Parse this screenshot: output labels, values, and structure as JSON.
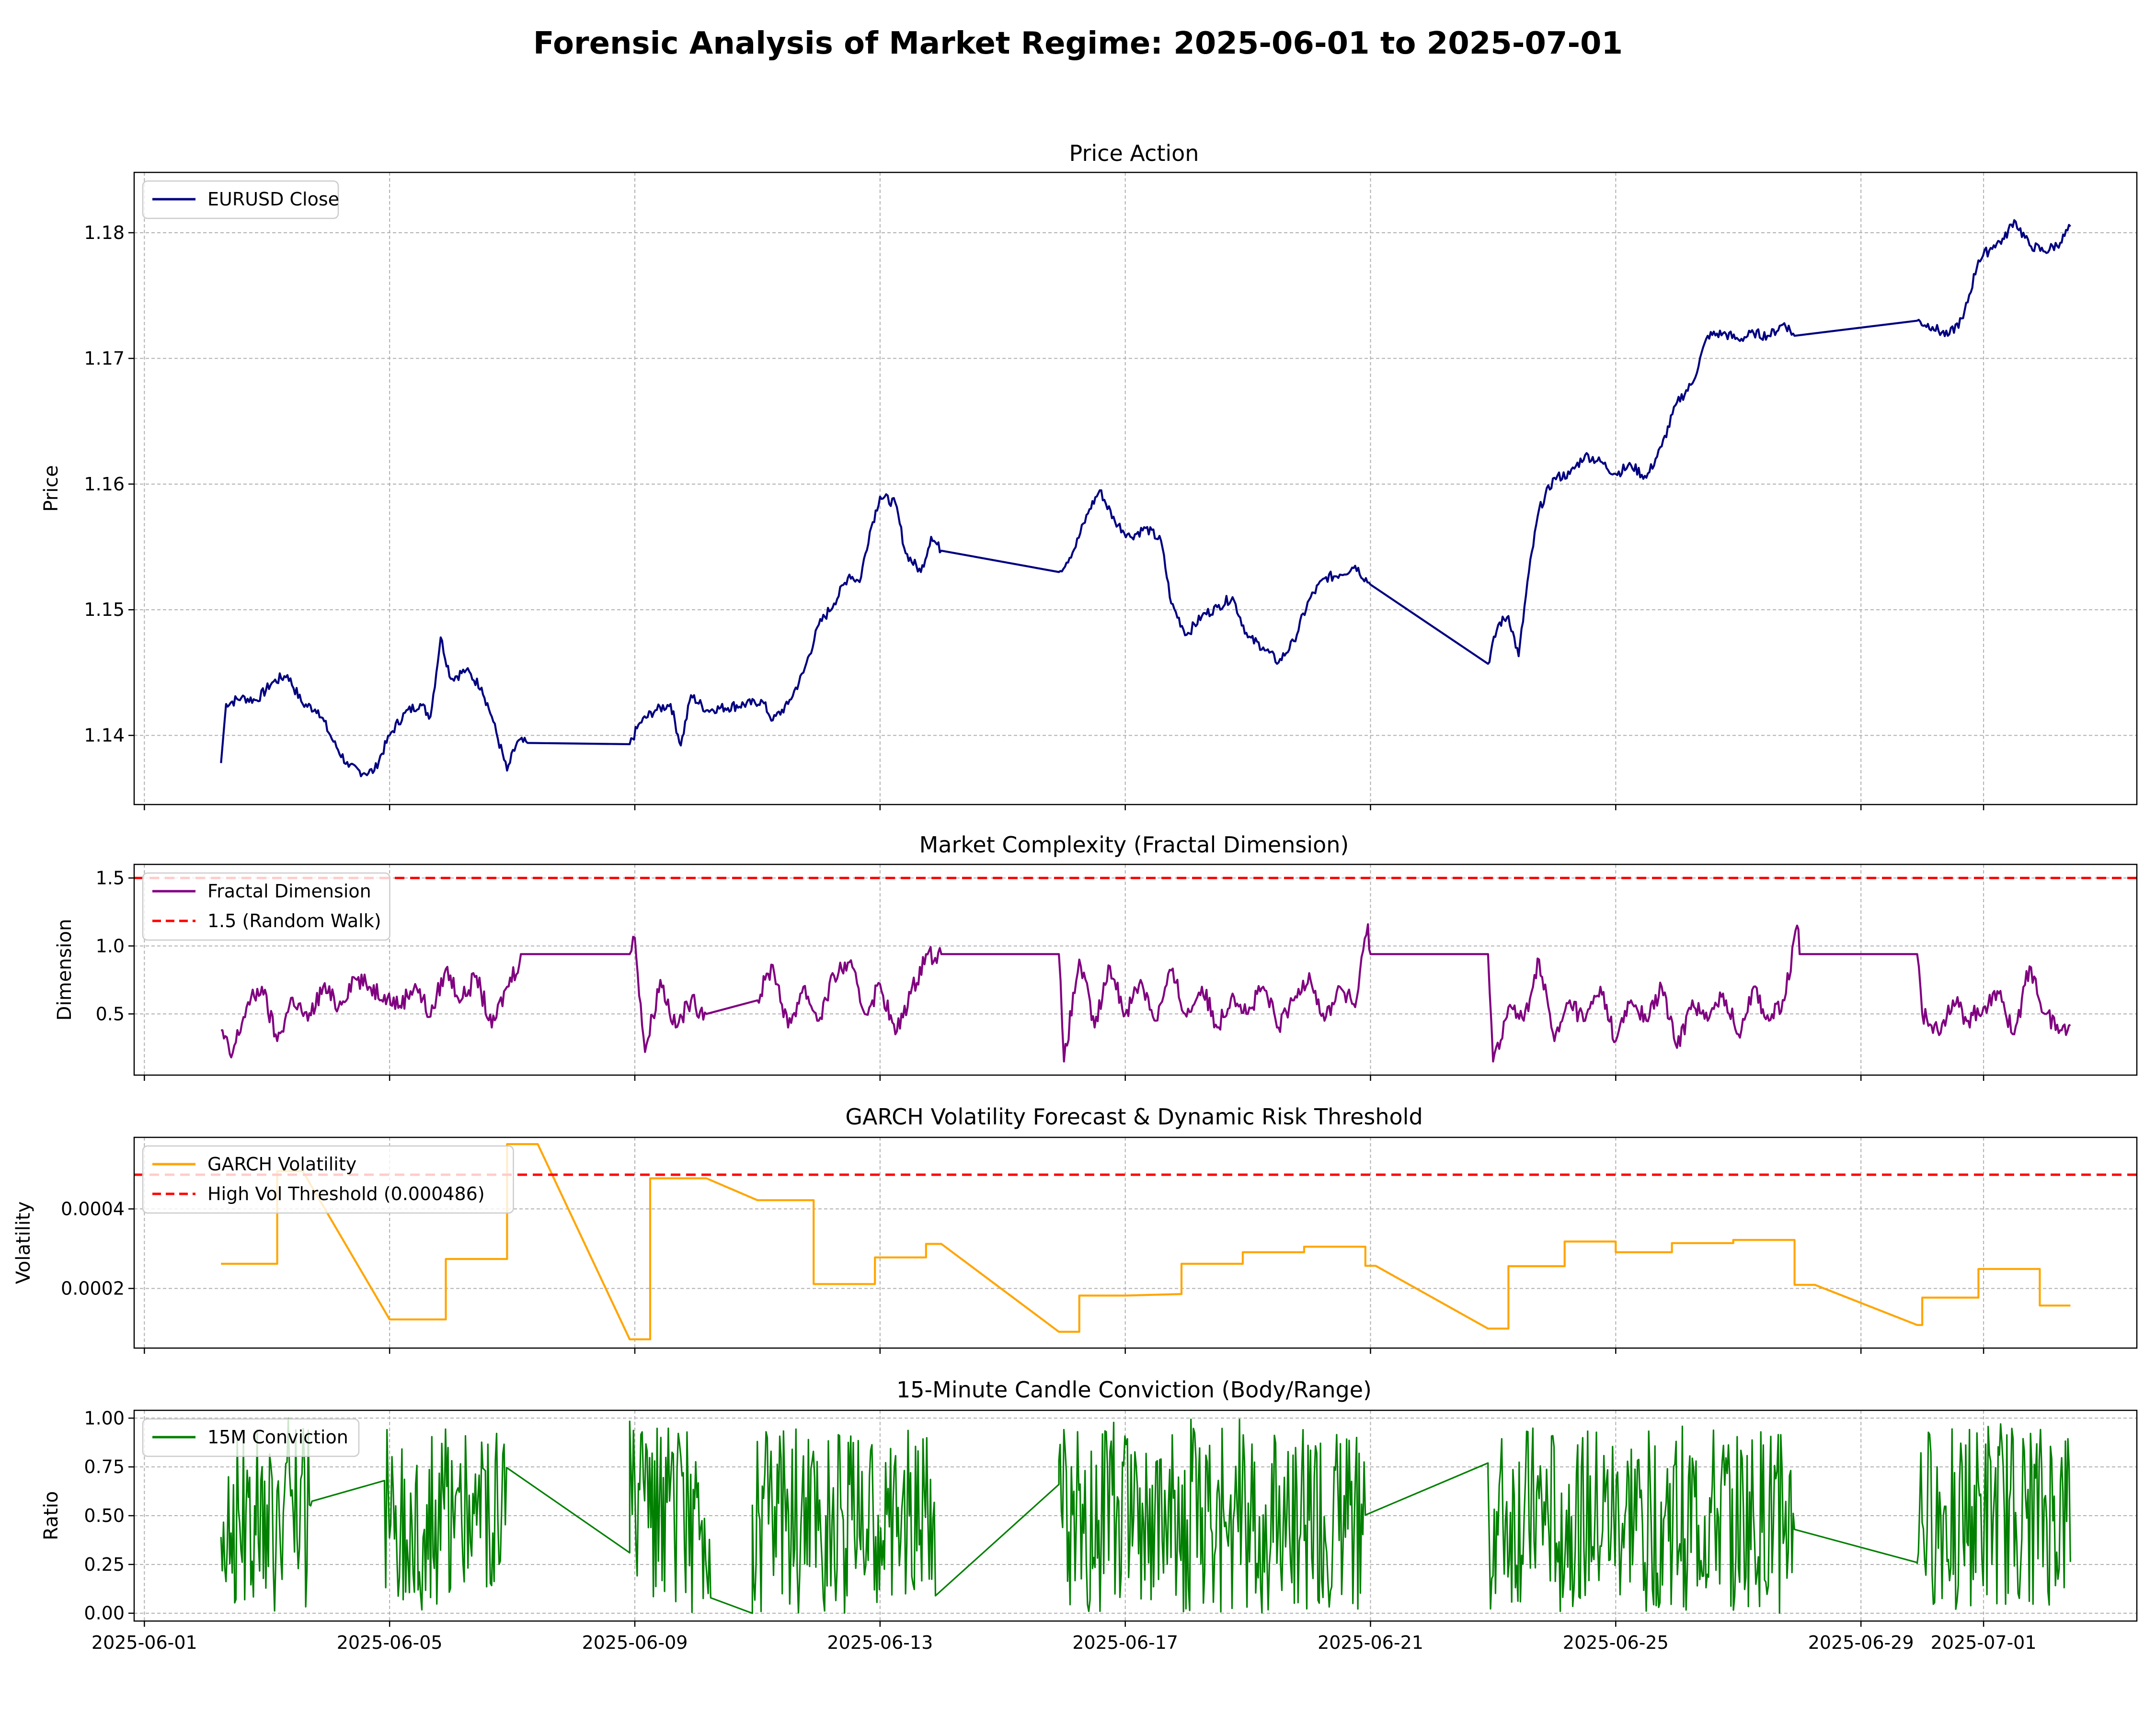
{
  "figure": {
    "title": "Forensic Analysis of Market Regime: 2025-06-01 to 2025-07-01"
  },
  "x_axis": {
    "tick_labels": [
      "2025-06-01",
      "2025-06-05",
      "2025-06-09",
      "2025-06-13",
      "2025-06-17",
      "2025-06-21",
      "2025-06-25",
      "2025-06-29",
      "2025-07-01"
    ],
    "tick_dates": [
      "2025-06-01",
      "2025-06-05",
      "2025-06-09",
      "2025-06-13",
      "2025-06-17",
      "2025-06-21",
      "2025-06-25",
      "2025-06-29",
      "2025-07-01"
    ],
    "range": [
      "2025-05-31T20:00",
      "2025-07-03T12:00"
    ]
  },
  "chart_data": [
    {
      "type": "line",
      "title": "Price Action",
      "xlabel": "",
      "ylabel": "Price",
      "ylim": [
        1.1345,
        1.1848
      ],
      "yticks": [
        1.14,
        1.15,
        1.16,
        1.17,
        1.18
      ],
      "ytick_labels": [
        "1.14",
        "1.15",
        "1.16",
        "1.17",
        "1.18"
      ],
      "grid": true,
      "legend_position": "upper-left",
      "series": [
        {
          "name": "EURUSD Close",
          "color": "#000080",
          "x": [
            "2025-06-02T06:00",
            "2025-06-02T08:00",
            "2025-06-02T14:00",
            "2025-06-02T20:00",
            "2025-06-03T02:00",
            "2025-06-03T08:00",
            "2025-06-03T14:00",
            "2025-06-03T20:00",
            "2025-06-04T02:00",
            "2025-06-04T08:00",
            "2025-06-04T14:00",
            "2025-06-04T18:00",
            "2025-06-05T00:00",
            "2025-06-05T06:00",
            "2025-06-05T12:00",
            "2025-06-05T16:00",
            "2025-06-05T20:00",
            "2025-06-06T00:00",
            "2025-06-06T06:00",
            "2025-06-06T12:00",
            "2025-06-06T16:00",
            "2025-06-06T22:00",
            "2025-06-07T02:00",
            "2025-06-07T06:00",
            "2025-06-08T22:00",
            "2025-06-09T02:00",
            "2025-06-09T08:00",
            "2025-06-09T14:00",
            "2025-06-09T18:00",
            "2025-06-09T22:00",
            "2025-06-10T04:00",
            "2025-06-11T02:00",
            "2025-06-11T06:00",
            "2025-06-11T12:00",
            "2025-06-11T18:00",
            "2025-06-12T00:00",
            "2025-06-12T06:00",
            "2025-06-12T12:00",
            "2025-06-12T16:00",
            "2025-06-12T20:00",
            "2025-06-13T00:00",
            "2025-06-13T06:00",
            "2025-06-13T10:00",
            "2025-06-13T16:00",
            "2025-06-13T20:00",
            "2025-06-14T00:00",
            "2025-06-15T22:00",
            "2025-06-16T04:00",
            "2025-06-16T10:00",
            "2025-06-16T14:00",
            "2025-06-16T20:00",
            "2025-06-17T02:00",
            "2025-06-17T08:00",
            "2025-06-17T14:00",
            "2025-06-17T18:00",
            "2025-06-18T00:00",
            "2025-06-18T06:00",
            "2025-06-18T12:00",
            "2025-06-18T18:00",
            "2025-06-19T00:00",
            "2025-06-19T06:00",
            "2025-06-19T12:00",
            "2025-06-19T18:00",
            "2025-06-20T00:00",
            "2025-06-20T06:00",
            "2025-06-20T12:00",
            "2025-06-20T18:00",
            "2025-06-21T00:00",
            "2025-06-22T22:00",
            "2025-06-23T02:00",
            "2025-06-23T06:00",
            "2025-06-23T10:00",
            "2025-06-23T14:00",
            "2025-06-23T18:00",
            "2025-06-24T00:00",
            "2025-06-24T06:00",
            "2025-06-24T12:00",
            "2025-06-24T18:00",
            "2025-06-25T00:00",
            "2025-06-25T06:00",
            "2025-06-25T12:00",
            "2025-06-25T18:00",
            "2025-06-26T00:00",
            "2025-06-26T06:00",
            "2025-06-26T12:00",
            "2025-06-26T18:00",
            "2025-06-27T00:00",
            "2025-06-27T06:00",
            "2025-06-27T12:00",
            "2025-06-27T18:00",
            "2025-06-27T22:00",
            "2025-06-29T22:00",
            "2025-06-30T04:00",
            "2025-06-30T10:00",
            "2025-06-30T16:00",
            "2025-06-30T22:00",
            "2025-07-01T04:00",
            "2025-07-01T08:00",
            "2025-07-01T12:00",
            "2025-07-01T18:00",
            "2025-07-02T00:00",
            "2025-07-02T06:00",
            "2025-07-02T10:00"
          ],
          "y": [
            1.1378,
            1.1425,
            1.143,
            1.1428,
            1.1442,
            1.1448,
            1.1425,
            1.142,
            1.1395,
            1.1375,
            1.137,
            1.1372,
            1.14,
            1.1418,
            1.1425,
            1.1415,
            1.1478,
            1.1445,
            1.1452,
            1.1438,
            1.1415,
            1.1372,
            1.1395,
            1.1394,
            1.1393,
            1.141,
            1.142,
            1.1425,
            1.1392,
            1.1432,
            1.142,
            1.1427,
            1.1412,
            1.1425,
            1.145,
            1.1488,
            1.1505,
            1.1528,
            1.1522,
            1.1562,
            1.159,
            1.1585,
            1.1545,
            1.153,
            1.1558,
            1.1547,
            1.153,
            1.1548,
            1.158,
            1.1595,
            1.157,
            1.1558,
            1.1565,
            1.1555,
            1.1505,
            1.148,
            1.1495,
            1.1502,
            1.151,
            1.1478,
            1.147,
            1.1458,
            1.1475,
            1.1508,
            1.1525,
            1.1528,
            1.1535,
            1.152,
            1.1457,
            1.1488,
            1.1495,
            1.1463,
            1.153,
            1.158,
            1.1605,
            1.1608,
            1.1623,
            1.1618,
            1.1608,
            1.1615,
            1.1605,
            1.163,
            1.1665,
            1.168,
            1.1718,
            1.172,
            1.1715,
            1.172,
            1.1718,
            1.1728,
            1.1718,
            1.173,
            1.1725,
            1.1718,
            1.1732,
            1.1778,
            1.179,
            1.1795,
            1.181,
            1.179,
            1.1785,
            1.1792,
            1.1805
          ]
        }
      ]
    },
    {
      "type": "line",
      "title": "Market Complexity (Fractal Dimension)",
      "xlabel": "",
      "ylabel": "Dimension",
      "ylim": [
        0.05,
        1.6
      ],
      "yticks": [
        0.5,
        1.0,
        1.5
      ],
      "ytick_labels": [
        "0.5",
        "1.0",
        "1.5"
      ],
      "grid": true,
      "legend_position": "upper-left",
      "series": [
        {
          "name": "Fractal Dimension",
          "color": "#800080",
          "x": [
            "2025-06-02T06:00",
            "2025-06-02T10:00",
            "2025-06-02T16:00",
            "2025-06-02T22:00",
            "2025-06-03T04:00",
            "2025-06-03T10:00",
            "2025-06-03T16:00",
            "2025-06-03T22:00",
            "2025-06-04T04:00",
            "2025-06-04T10:00",
            "2025-06-04T16:00",
            "2025-06-04T22:00",
            "2025-06-05T04:00",
            "2025-06-05T10:00",
            "2025-06-05T16:00",
            "2025-06-05T22:00",
            "2025-06-06T04:00",
            "2025-06-06T10:00",
            "2025-06-06T16:00",
            "2025-06-06T22:00",
            "2025-06-07T04:00",
            "2025-06-08T22:00",
            "2025-06-09T00:00",
            "2025-06-09T04:00",
            "2025-06-09T10:00",
            "2025-06-09T16:00",
            "2025-06-09T22:00",
            "2025-06-10T04:00",
            "2025-06-11T00:00",
            "2025-06-11T06:00",
            "2025-06-11T12:00",
            "2025-06-11T18:00",
            "2025-06-12T00:00",
            "2025-06-12T06:00",
            "2025-06-12T12:00",
            "2025-06-12T18:00",
            "2025-06-13T00:00",
            "2025-06-13T06:00",
            "2025-06-13T12:00",
            "2025-06-13T18:00",
            "2025-06-14T00:00",
            "2025-06-15T22:00",
            "2025-06-16T00:00",
            "2025-06-16T06:00",
            "2025-06-16T12:00",
            "2025-06-16T18:00",
            "2025-06-17T00:00",
            "2025-06-17T06:00",
            "2025-06-17T12:00",
            "2025-06-17T18:00",
            "2025-06-18T00:00",
            "2025-06-18T06:00",
            "2025-06-18T12:00",
            "2025-06-18T18:00",
            "2025-06-19T00:00",
            "2025-06-19T06:00",
            "2025-06-19T12:00",
            "2025-06-19T18:00",
            "2025-06-20T00:00",
            "2025-06-20T06:00",
            "2025-06-20T12:00",
            "2025-06-20T18:00",
            "2025-06-20T23:00",
            "2025-06-21T00:00",
            "2025-06-22T22:00",
            "2025-06-23T00:00",
            "2025-06-23T06:00",
            "2025-06-23T12:00",
            "2025-06-23T18:00",
            "2025-06-24T00:00",
            "2025-06-24T06:00",
            "2025-06-24T12:00",
            "2025-06-24T18:00",
            "2025-06-25T00:00",
            "2025-06-25T06:00",
            "2025-06-25T12:00",
            "2025-06-25T18:00",
            "2025-06-26T00:00",
            "2025-06-26T06:00",
            "2025-06-26T12:00",
            "2025-06-26T18:00",
            "2025-06-27T00:00",
            "2025-06-27T06:00",
            "2025-06-27T12:00",
            "2025-06-27T18:00",
            "2025-06-27T23:00",
            "2025-06-28T00:00",
            "2025-06-29T22:00",
            "2025-06-30T00:00",
            "2025-06-30T06:00",
            "2025-06-30T12:00",
            "2025-06-30T18:00",
            "2025-07-01T00:00",
            "2025-07-01T06:00",
            "2025-07-01T12:00",
            "2025-07-01T18:00",
            "2025-07-02T00:00",
            "2025-07-02T06:00",
            "2025-07-02T10:00"
          ],
          "y": [
            0.38,
            0.18,
            0.55,
            0.7,
            0.3,
            0.62,
            0.45,
            0.7,
            0.55,
            0.77,
            0.7,
            0.64,
            0.56,
            0.72,
            0.48,
            0.83,
            0.6,
            0.78,
            0.4,
            0.7,
            0.94,
            0.94,
            1.06,
            0.22,
            0.75,
            0.4,
            0.6,
            0.5,
            0.6,
            0.86,
            0.4,
            0.7,
            0.45,
            0.78,
            0.88,
            0.5,
            0.72,
            0.35,
            0.65,
            0.94,
            0.94,
            0.94,
            0.15,
            0.9,
            0.4,
            0.85,
            0.5,
            0.75,
            0.45,
            0.82,
            0.48,
            0.7,
            0.4,
            0.65,
            0.5,
            0.7,
            0.4,
            0.6,
            0.8,
            0.45,
            0.7,
            0.55,
            1.16,
            0.94,
            0.94,
            0.15,
            0.55,
            0.45,
            0.9,
            0.3,
            0.6,
            0.45,
            0.7,
            0.3,
            0.6,
            0.45,
            0.7,
            0.25,
            0.6,
            0.45,
            0.65,
            0.35,
            0.7,
            0.45,
            0.6,
            1.15,
            0.94,
            0.94,
            0.5,
            0.38,
            0.6,
            0.45,
            0.55,
            0.65,
            0.35,
            0.85,
            0.5,
            0.38,
            0.42
          ]
        },
        {
          "name": "1.5 (Random Walk)",
          "color": "#ff0000",
          "style": "dashed",
          "constant": 1.5
        }
      ]
    },
    {
      "type": "line",
      "title": "GARCH Volatility Forecast & Dynamic Risk Threshold",
      "xlabel": "",
      "ylabel": "Volatility",
      "ylim": [
        5e-05,
        0.00058
      ],
      "yticks": [
        0.0002,
        0.0004
      ],
      "ytick_labels": [
        "0.0002",
        "0.0004"
      ],
      "grid": true,
      "legend_position": "upper-left",
      "series": [
        {
          "name": "GARCH Volatility",
          "color": "#ffa500",
          "x": [
            "2025-06-02T06:00",
            "2025-06-03T04:00",
            "2025-06-03T04:00",
            "2025-06-03T14:00",
            "2025-06-05T00:00",
            "2025-06-05T00:00",
            "2025-06-05T22:00",
            "2025-06-05T22:00",
            "2025-06-06T22:00",
            "2025-06-06T22:00",
            "2025-06-07T10:00",
            "2025-06-08T22:00",
            "2025-06-09T06:00",
            "2025-06-09T06:00",
            "2025-06-10T04:00",
            "2025-06-11T00:00",
            "2025-06-11T00:00",
            "2025-06-11T22:00",
            "2025-06-11T22:00",
            "2025-06-12T22:00",
            "2025-06-12T22:00",
            "2025-06-13T18:00",
            "2025-06-13T18:00",
            "2025-06-14T00:00",
            "2025-06-15T22:00",
            "2025-06-16T06:00",
            "2025-06-16T06:00",
            "2025-06-17T00:00",
            "2025-06-17T22:00",
            "2025-06-17T22:00",
            "2025-06-18T22:00",
            "2025-06-18T22:00",
            "2025-06-19T22:00",
            "2025-06-19T22:00",
            "2025-06-20T22:00",
            "2025-06-20T22:00",
            "2025-06-21T02:00",
            "2025-06-22T22:00",
            "2025-06-23T06:00",
            "2025-06-23T06:00",
            "2025-06-24T04:00",
            "2025-06-24T04:00",
            "2025-06-25T00:00",
            "2025-06-25T00:00",
            "2025-06-25T22:00",
            "2025-06-25T22:00",
            "2025-06-26T22:00",
            "2025-06-26T22:00",
            "2025-06-27T22:00",
            "2025-06-27T22:00",
            "2025-06-28T06:00",
            "2025-06-29T22:00",
            "2025-06-30T00:00",
            "2025-06-30T00:00",
            "2025-06-30T22:00",
            "2025-06-30T22:00",
            "2025-07-01T22:00",
            "2025-07-01T22:00",
            "2025-07-02T10:00"
          ],
          "y": [
            0.000262,
            0.000262,
            0.000495,
            0.000495,
            0.000122,
            0.000122,
            0.000122,
            0.000274,
            0.000274,
            0.000563,
            0.000563,
            7.2e-05,
            7.2e-05,
            0.000477,
            0.000477,
            0.000422,
            0.000422,
            0.000422,
            0.000211,
            0.000211,
            0.000278,
            0.000278,
            0.000312,
            0.000312,
            9.1e-05,
            9.1e-05,
            0.000182,
            0.000182,
            0.000186,
            0.000262,
            0.000262,
            0.000291,
            0.000291,
            0.000305,
            0.000305,
            0.000257,
            0.000257,
            9.9e-05,
            9.9e-05,
            0.000256,
            0.000256,
            0.000318,
            0.000318,
            0.000291,
            0.000291,
            0.000314,
            0.000314,
            0.000322,
            0.000322,
            0.000209,
            0.000209,
            0.000108,
            0.000108,
            0.000177,
            0.000177,
            0.000249,
            0.000249,
            0.000157,
            0.000157
          ]
        },
        {
          "name": "High Vol Threshold (0.000486)",
          "color": "#ff0000",
          "style": "dashed",
          "constant": 0.000486
        }
      ]
    },
    {
      "type": "line",
      "title": "15-Minute Candle Conviction (Body/Range)",
      "xlabel": "",
      "ylabel": "Ratio",
      "ylim": [
        -0.04,
        1.04
      ],
      "yticks": [
        0.0,
        0.25,
        0.5,
        0.75,
        1.0
      ],
      "ytick_labels": [
        "0.00",
        "0.25",
        "0.50",
        "0.75",
        "1.00"
      ],
      "grid": true,
      "legend_position": "upper-left",
      "note_density": "15-minute samples shown as dense oscillation within sessions; values between 0 and 1",
      "series": [
        {
          "name": "15M Conviction",
          "color": "#008000",
          "sessions": [
            {
              "start": "2025-06-02T06:00",
              "end": "2025-06-03T18:00"
            },
            {
              "start": "2025-06-04T22:00",
              "end": "2025-06-06T22:00"
            },
            {
              "start": "2025-06-08T22:00",
              "end": "2025-06-10T06:00"
            },
            {
              "start": "2025-06-10T22:00",
              "end": "2025-06-13T22:00"
            },
            {
              "start": "2025-06-15T22:00",
              "end": "2025-06-20T22:00"
            },
            {
              "start": "2025-06-22T22:00",
              "end": "2025-06-27T22:00"
            },
            {
              "start": "2025-06-29T22:00",
              "end": "2025-07-02T10:00"
            }
          ],
          "gap_x": [
            "2025-06-03T18:00",
            "2025-06-04T22:00",
            "2025-06-06T22:00",
            "2025-06-08T22:00",
            "2025-06-10T06:00",
            "2025-06-10T22:00",
            "2025-06-13T22:00",
            "2025-06-15T22:00",
            "2025-06-20T22:00",
            "2025-06-22T22:00",
            "2025-06-27T22:00",
            "2025-06-29T22:00"
          ],
          "gap_y": [
            0.08,
            0.68,
            0.2,
            0.31,
            0.73,
            0.0,
            0.25,
            0.66,
            0.71,
            0.77,
            0.5,
            0.26
          ]
        }
      ]
    }
  ]
}
